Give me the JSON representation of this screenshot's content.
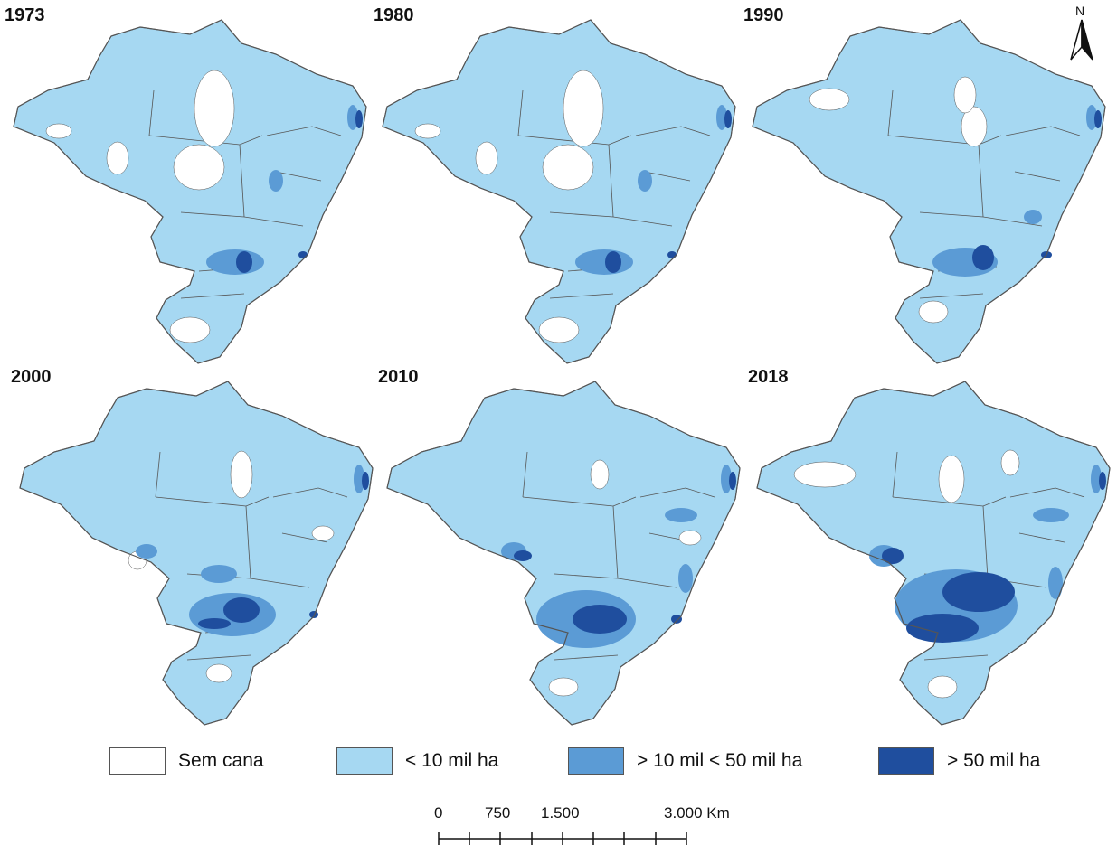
{
  "colors": {
    "sem_cana": "#ffffff",
    "low": "#a6d8f2",
    "mid": "#5b9bd5",
    "high": "#1f4e9e",
    "border": "#555555"
  },
  "north_label": "N",
  "panels": [
    {
      "year": "1973",
      "level": 1
    },
    {
      "year": "1980",
      "level": 1
    },
    {
      "year": "1990",
      "level": 2
    },
    {
      "year": "2000",
      "level": 3
    },
    {
      "year": "2010",
      "level": 4
    },
    {
      "year": "2018",
      "level": 5
    }
  ],
  "legend": [
    {
      "label": "Sem cana",
      "color": "#ffffff"
    },
    {
      "label": "< 10 mil ha",
      "color": "#a6d8f2"
    },
    {
      "label": "> 10 mil < 50 mil ha",
      "color": "#5b9bd5"
    },
    {
      "label": "> 50 mil ha",
      "color": "#1f4e9e"
    }
  ],
  "scale": {
    "ticks": [
      "0",
      "750",
      "1.500",
      "3.000 Km"
    ]
  }
}
